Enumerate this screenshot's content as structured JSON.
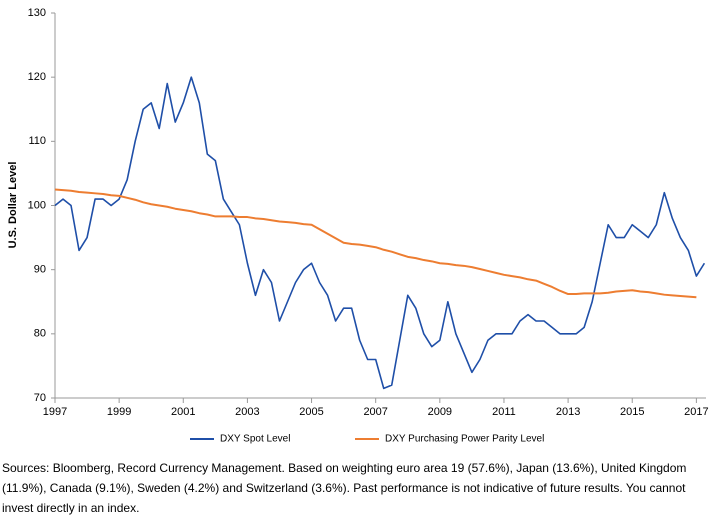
{
  "chart_data": {
    "type": "line",
    "x": [
      1997,
      1997.25,
      1997.5,
      1997.75,
      1998,
      1998.25,
      1998.5,
      1998.75,
      1999,
      1999.25,
      1999.5,
      1999.75,
      2000,
      2000.25,
      2000.5,
      2000.75,
      2001,
      2001.25,
      2001.5,
      2001.75,
      2002,
      2002.25,
      2002.5,
      2002.75,
      2003,
      2003.25,
      2003.5,
      2003.75,
      2004,
      2004.25,
      2004.5,
      2004.75,
      2005,
      2005.25,
      2005.5,
      2005.75,
      2006,
      2006.25,
      2006.5,
      2006.75,
      2007,
      2007.25,
      2007.5,
      2007.75,
      2008,
      2008.25,
      2008.5,
      2008.75,
      2009,
      2009.25,
      2009.5,
      2009.75,
      2010,
      2010.25,
      2010.5,
      2010.75,
      2011,
      2011.25,
      2011.5,
      2011.75,
      2012,
      2012.25,
      2012.5,
      2012.75,
      2013,
      2013.25,
      2013.5,
      2013.75,
      2014,
      2014.25,
      2014.5,
      2014.75,
      2015,
      2015.25,
      2015.5,
      2015.75,
      2016,
      2016.25,
      2016.5,
      2016.75,
      2017,
      2017.25
    ],
    "series": [
      {
        "name": "DXY Spot Level",
        "color": "#1f4fa8",
        "values": [
          100,
          101,
          100,
          93,
          95,
          101,
          101,
          100,
          101,
          104,
          110,
          115,
          116,
          112,
          119,
          113,
          116,
          120,
          116,
          108,
          107,
          101,
          99,
          97,
          91,
          86,
          90,
          88,
          82,
          85,
          88,
          90,
          91,
          88,
          86,
          82,
          84,
          84,
          79,
          76,
          76,
          71.5,
          72,
          79,
          86,
          84,
          80,
          78,
          79,
          85,
          80,
          77,
          74,
          76,
          79,
          80,
          80,
          80,
          82,
          83,
          82,
          82,
          81,
          80,
          80,
          80,
          81,
          85,
          91,
          97,
          95,
          95,
          97,
          96,
          95,
          97,
          102,
          98,
          95,
          93,
          89,
          91
        ]
      },
      {
        "name": "DXY Purchasing Power Parity Level",
        "color": "#ed7d31",
        "values": [
          102.5,
          102.4,
          102.3,
          102.1,
          102,
          101.9,
          101.8,
          101.6,
          101.5,
          101.2,
          100.9,
          100.5,
          100.2,
          100,
          99.8,
          99.5,
          99.3,
          99.1,
          98.8,
          98.6,
          98.3,
          98.3,
          98.3,
          98.2,
          98.2,
          98,
          97.9,
          97.7,
          97.5,
          97.4,
          97.3,
          97.1,
          97,
          96.3,
          95.6,
          94.9,
          94.2,
          94,
          93.9,
          93.7,
          93.5,
          93.1,
          92.8,
          92.4,
          92,
          91.8,
          91.5,
          91.3,
          91,
          90.9,
          90.7,
          90.6,
          90.4,
          90.1,
          89.8,
          89.5,
          89.2,
          89,
          88.8,
          88.5,
          88.3,
          87.8,
          87.3,
          86.7,
          86.2,
          86.2,
          86.3,
          86.3,
          86.3,
          86.4,
          86.6,
          86.7,
          86.8,
          86.6,
          86.5,
          86.3,
          86.1,
          86,
          85.9,
          85.8,
          85.7,
          null
        ]
      }
    ],
    "y_label": "U.S. Dollar Level",
    "xlim": [
      1997,
      2017.3
    ],
    "xticks": [
      1997,
      1999,
      2001,
      2003,
      2005,
      2007,
      2009,
      2011,
      2013,
      2015,
      2017
    ],
    "ylim": [
      70,
      130
    ],
    "yticks": [
      70,
      80,
      90,
      100,
      110,
      120,
      130
    ],
    "grid": false,
    "legend": "bottom",
    "note": "Sources: Bloomberg, Record Currency Management. Based on weighting euro area 19 (57.6%), Japan (13.6%), United Kingdom (11.9%), Canada (9.1%), Sweden (4.2%) and Switzerland (3.6%). Past performance is not indicative of future results. You cannot invest directly in an index."
  }
}
